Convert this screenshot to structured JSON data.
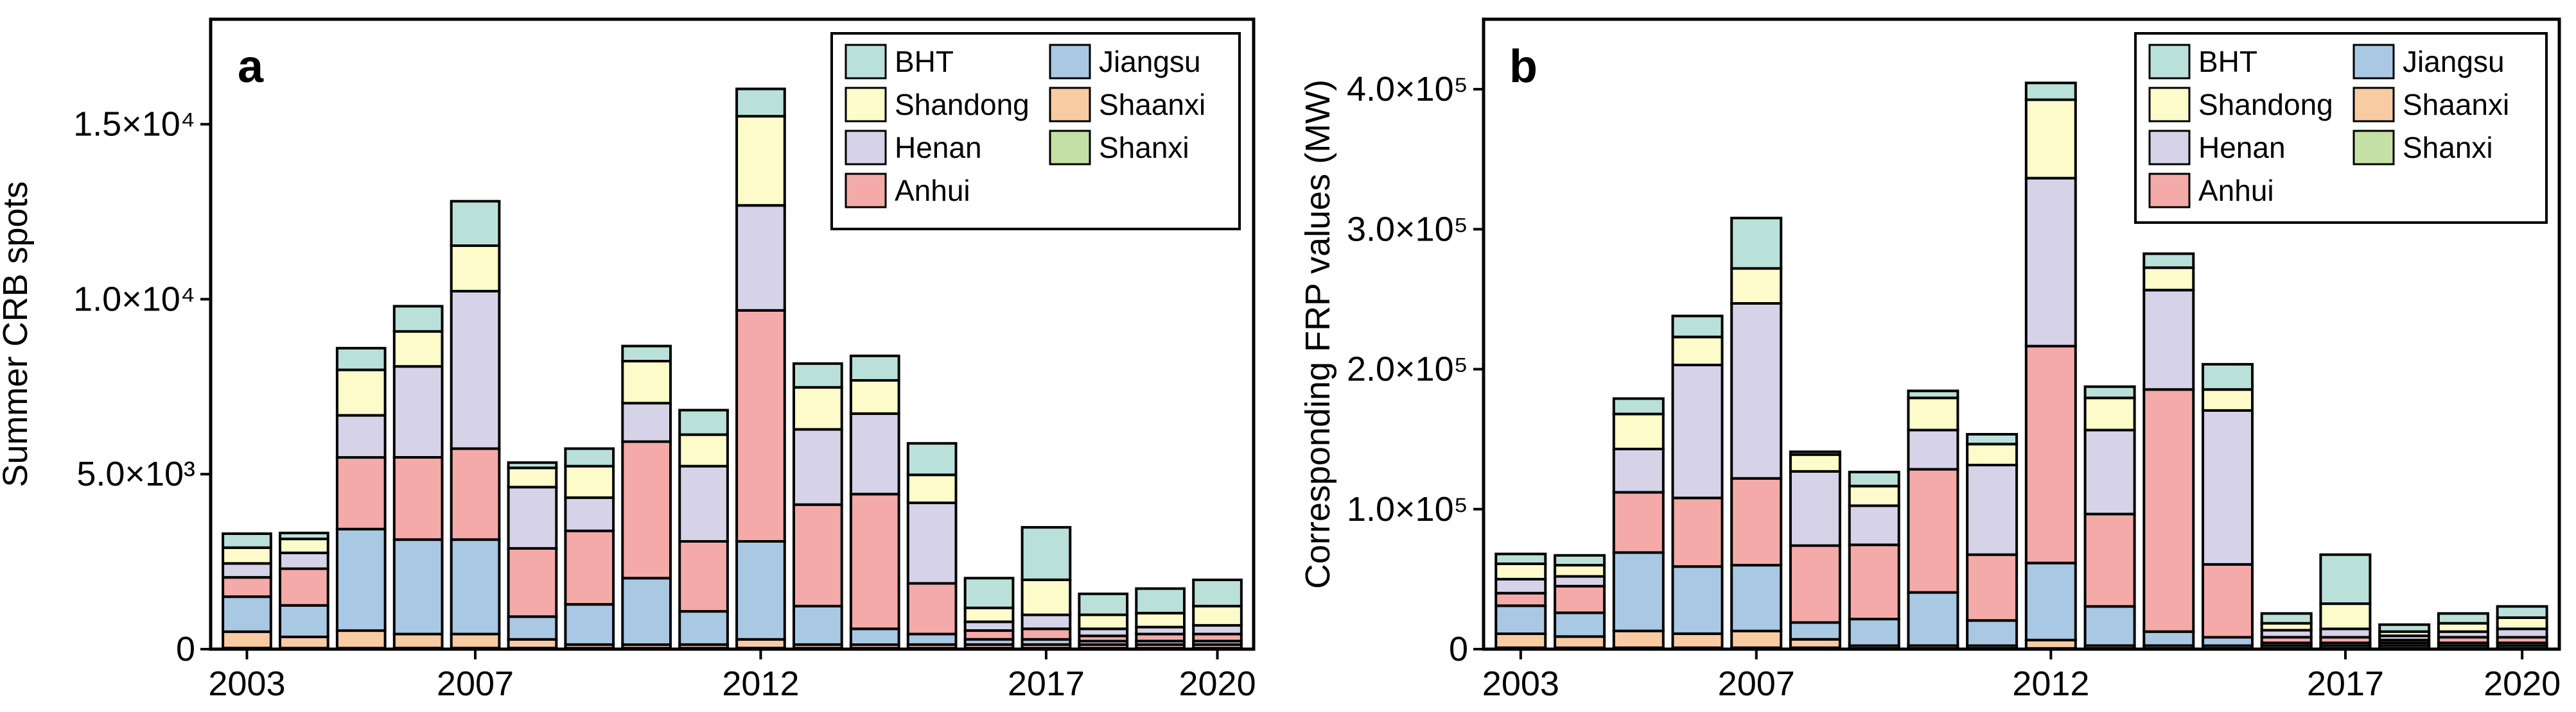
{
  "chart_data": [
    {
      "type": "bar",
      "stacked": true,
      "panel_label": "a",
      "title": "",
      "xlabel": "",
      "ylabel": "Summer CRB spots",
      "ylim": [
        0,
        18000
      ],
      "years": [
        "2003",
        "2004",
        "2005",
        "2006",
        "2007",
        "2008",
        "2009",
        "2010",
        "2011",
        "2012",
        "2013",
        "2014",
        "2015",
        "2016",
        "2017",
        "2018",
        "2019",
        "2020"
      ],
      "xtick_labels": [
        "2003",
        "2007",
        "2012",
        "2017",
        "2020"
      ],
      "ytick_values": [
        0,
        5000,
        10000,
        15000
      ],
      "ytick_labels": [
        "0",
        "5.0×10³",
        "1.0×10⁴",
        "1.5×10⁴"
      ],
      "legend_position": "top-right",
      "series": [
        {
          "name": "Shanxi",
          "color": "#c5e0a5",
          "values": [
            30,
            30,
            30,
            30,
            30,
            30,
            30,
            30,
            30,
            30,
            30,
            30,
            30,
            30,
            30,
            30,
            30,
            30
          ]
        },
        {
          "name": "Shaanxi",
          "color": "#f9cba2",
          "values": [
            470,
            320,
            500,
            400,
            400,
            250,
            100,
            100,
            100,
            250,
            100,
            100,
            100,
            100,
            100,
            100,
            100,
            100
          ]
        },
        {
          "name": "Jiangsu",
          "color": "#a9c8e3",
          "values": [
            1000,
            900,
            2900,
            2700,
            2700,
            650,
            1150,
            1900,
            950,
            2800,
            1100,
            450,
            300,
            150,
            150,
            100,
            100,
            100
          ]
        },
        {
          "name": "Anhui",
          "color": "#f4aaa8",
          "values": [
            550,
            1050,
            2050,
            2350,
            2600,
            1950,
            2100,
            3900,
            2000,
            6600,
            2900,
            3850,
            1450,
            250,
            300,
            150,
            200,
            200
          ]
        },
        {
          "name": "Henan",
          "color": "#d6d3e8",
          "values": [
            400,
            450,
            1200,
            2600,
            4500,
            1750,
            950,
            1100,
            2150,
            3000,
            2150,
            2300,
            2300,
            250,
            400,
            200,
            200,
            250
          ]
        },
        {
          "name": "Shandong",
          "color": "#fdfbc9",
          "values": [
            450,
            400,
            1300,
            1000,
            1300,
            550,
            900,
            1200,
            900,
            2550,
            1200,
            950,
            800,
            400,
            1000,
            400,
            400,
            550
          ]
        },
        {
          "name": "BHT",
          "color": "#b9e1da",
          "values": [
            400,
            170,
            620,
            720,
            1270,
            150,
            500,
            430,
            700,
            780,
            680,
            700,
            900,
            850,
            1500,
            600,
            700,
            750
          ]
        }
      ]
    },
    {
      "type": "bar",
      "stacked": true,
      "panel_label": "b",
      "title": "",
      "xlabel": "",
      "ylabel": "Corresponding FRP values (MW)",
      "ylim": [
        0,
        450000
      ],
      "years": [
        "2003",
        "2004",
        "2005",
        "2006",
        "2007",
        "2008",
        "2009",
        "2010",
        "2011",
        "2012",
        "2013",
        "2014",
        "2015",
        "2016",
        "2017",
        "2018",
        "2019",
        "2020"
      ],
      "xtick_labels": [
        "2003",
        "2007",
        "2012",
        "2017",
        "2020"
      ],
      "ytick_values": [
        0,
        100000,
        200000,
        300000,
        400000
      ],
      "ytick_labels": [
        "0",
        "1.0×10⁵",
        "2.0×10⁵",
        "3.0×10⁵",
        "4.0×10⁵"
      ],
      "legend_position": "top-right",
      "series": [
        {
          "name": "Shanxi",
          "color": "#c5e0a5",
          "values": [
            1000,
            1000,
            1000,
            1000,
            1000,
            1000,
            500,
            500,
            500,
            500,
            500,
            500,
            500,
            500,
            500,
            500,
            500,
            500
          ]
        },
        {
          "name": "Shaanxi",
          "color": "#f9cba2",
          "values": [
            10000,
            8000,
            12000,
            10000,
            12000,
            6000,
            2000,
            2000,
            2000,
            6000,
            2000,
            2000,
            2000,
            2000,
            2000,
            2000,
            2000,
            2000
          ]
        },
        {
          "name": "Jiangsu",
          "color": "#a9c8e3",
          "values": [
            20000,
            17000,
            56000,
            48000,
            47000,
            12000,
            19000,
            38000,
            18000,
            55000,
            28000,
            10000,
            6000,
            2000,
            2000,
            2000,
            2000,
            2000
          ]
        },
        {
          "name": "Anhui",
          "color": "#f4aaa8",
          "values": [
            9000,
            19000,
            43000,
            49000,
            62000,
            55000,
            53000,
            88000,
            47000,
            155000,
            66000,
            173000,
            52000,
            4000,
            4000,
            2000,
            4000,
            4000
          ]
        },
        {
          "name": "Henan",
          "color": "#d6d3e8",
          "values": [
            10000,
            7000,
            31000,
            95000,
            125000,
            53000,
            28000,
            28000,
            64000,
            120000,
            60000,
            71000,
            110000,
            5000,
            6000,
            3000,
            4000,
            6000
          ]
        },
        {
          "name": "Shandong",
          "color": "#fdfbc9",
          "values": [
            11000,
            8000,
            25000,
            20000,
            25000,
            12000,
            14000,
            23000,
            15000,
            56000,
            23000,
            16000,
            15000,
            5000,
            18000,
            3000,
            6000,
            8000
          ]
        },
        {
          "name": "BHT",
          "color": "#b9e1da",
          "values": [
            7000,
            7000,
            11000,
            15000,
            36000,
            2000,
            10000,
            5000,
            7000,
            12000,
            8000,
            10000,
            18000,
            7000,
            35000,
            5000,
            7000,
            8000
          ]
        }
      ]
    }
  ]
}
